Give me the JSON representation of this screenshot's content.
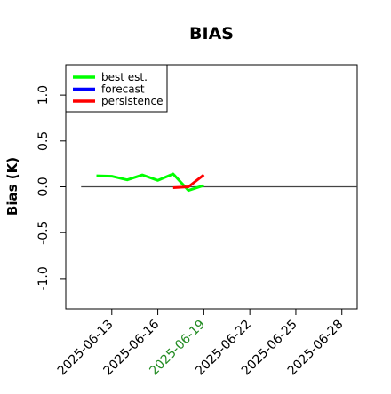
{
  "chart_data": {
    "type": "line",
    "title": "BIAS",
    "ylabel": "Bias (K)",
    "xlabel": "",
    "x_axis": {
      "ticks": [
        "2025-06-13",
        "2025-06-16",
        "2025-06-19",
        "2025-06-22",
        "2025-06-25",
        "2025-06-28"
      ],
      "highlighted_tick": "2025-06-19",
      "highlight_color": "#228B22",
      "range": [
        "2025-06-10",
        "2025-06-29"
      ]
    },
    "y_axis": {
      "ticks": [
        "-1.0",
        "-0.5",
        "0.0",
        "0.5",
        "1.0"
      ],
      "range": [
        -1.33,
        1.33
      ]
    },
    "grid": false,
    "legend": {
      "position": "top-left",
      "entries": [
        {
          "label": "best est.",
          "color": "#00ff00"
        },
        {
          "label": "forecast",
          "color": "#0000ff"
        },
        {
          "label": "persistence",
          "color": "#ff0000"
        }
      ]
    },
    "reference_line": {
      "y": 0.0,
      "color": "#444444",
      "x_start": "2025-06-11",
      "x_end": "2025-06-29"
    },
    "series": [
      {
        "name": "best est.",
        "color": "#00ff00",
        "x": [
          "2025-06-12",
          "2025-06-13",
          "2025-06-14",
          "2025-06-15",
          "2025-06-16",
          "2025-06-17",
          "2025-06-18",
          "2025-06-19"
        ],
        "values": [
          0.12,
          0.115,
          0.075,
          0.13,
          0.07,
          0.14,
          -0.04,
          0.015
        ]
      },
      {
        "name": "forecast",
        "color": "#0000ff",
        "x": [],
        "values": []
      },
      {
        "name": "persistence",
        "color": "#ff0000",
        "x": [
          "2025-06-17",
          "2025-06-18",
          "2025-06-19"
        ],
        "values": [
          -0.01,
          0.0,
          0.13
        ]
      }
    ]
  }
}
